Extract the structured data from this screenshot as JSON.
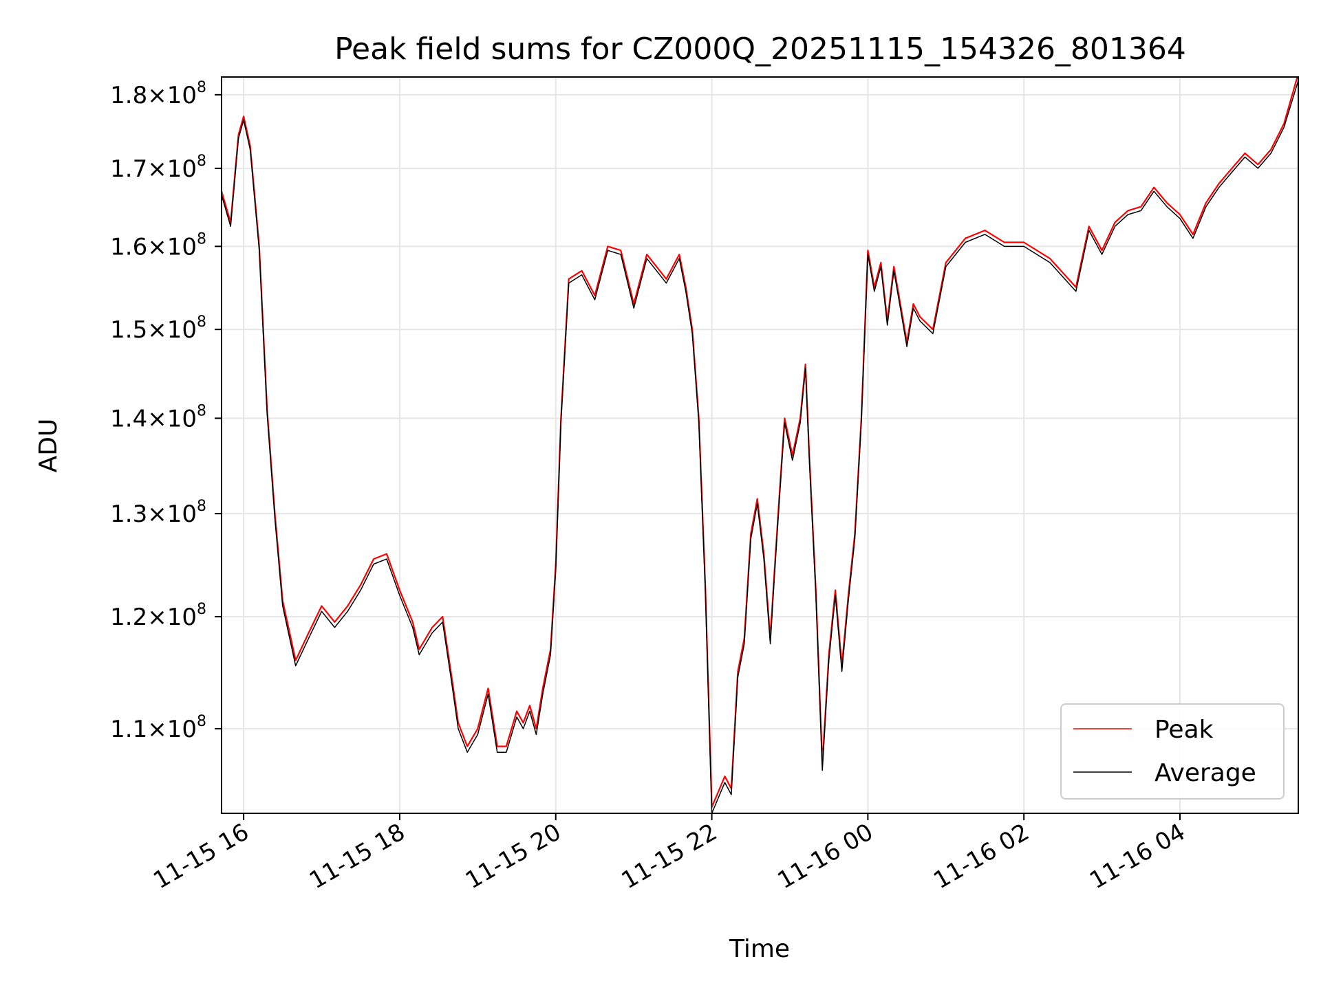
{
  "chart_data": {
    "type": "line",
    "title": "Peak field sums for CZ000Q_20251115_154326_801364",
    "xlabel": "Time",
    "ylabel": "ADU",
    "y_scale": "log",
    "xlim": [
      "2025-11-15 15:43",
      "2025-11-16 05:31"
    ],
    "ylim": [
      103000000,
      182500000
    ],
    "grid": true,
    "legend_position": "lower right",
    "x_ticks": [
      "11-15 16",
      "11-15 18",
      "11-15 20",
      "11-15 22",
      "11-16 00",
      "11-16 02",
      "11-16 04"
    ],
    "y_ticks": [
      {
        "value": 110000000,
        "mantissa": "1.1",
        "exp": "8"
      },
      {
        "value": 120000000,
        "mantissa": "1.2",
        "exp": "8"
      },
      {
        "value": 130000000,
        "mantissa": "1.3",
        "exp": "8"
      },
      {
        "value": 140000000,
        "mantissa": "1.4",
        "exp": "8"
      },
      {
        "value": 150000000,
        "mantissa": "1.5",
        "exp": "8"
      },
      {
        "value": 160000000,
        "mantissa": "1.6",
        "exp": "8"
      },
      {
        "value": 170000000,
        "mantissa": "1.7",
        "exp": "8"
      },
      {
        "value": 180000000,
        "mantissa": "1.8",
        "exp": "8"
      }
    ],
    "x": [
      "2025-11-15 15:43",
      "2025-11-15 15:50",
      "2025-11-15 15:56",
      "2025-11-15 16:00",
      "2025-11-15 16:05",
      "2025-11-15 16:12",
      "2025-11-15 16:18",
      "2025-11-15 16:24",
      "2025-11-15 16:30",
      "2025-11-15 16:40",
      "2025-11-15 16:50",
      "2025-11-15 17:00",
      "2025-11-15 17:10",
      "2025-11-15 17:20",
      "2025-11-15 17:30",
      "2025-11-15 17:40",
      "2025-11-15 17:50",
      "2025-11-15 18:00",
      "2025-11-15 18:10",
      "2025-11-15 18:15",
      "2025-11-15 18:25",
      "2025-11-15 18:33",
      "2025-11-15 18:40",
      "2025-11-15 18:45",
      "2025-11-15 18:52",
      "2025-11-15 19:00",
      "2025-11-15 19:08",
      "2025-11-15 19:15",
      "2025-11-15 19:22",
      "2025-11-15 19:30",
      "2025-11-15 19:35",
      "2025-11-15 19:40",
      "2025-11-15 19:45",
      "2025-11-15 19:50",
      "2025-11-15 19:56",
      "2025-11-15 20:00",
      "2025-11-15 20:04",
      "2025-11-15 20:10",
      "2025-11-15 20:20",
      "2025-11-15 20:30",
      "2025-11-15 20:40",
      "2025-11-15 20:50",
      "2025-11-15 21:00",
      "2025-11-15 21:10",
      "2025-11-15 21:20",
      "2025-11-15 21:25",
      "2025-11-15 21:35",
      "2025-11-15 21:40",
      "2025-11-15 21:45",
      "2025-11-15 21:50",
      "2025-11-15 21:55",
      "2025-11-15 22:00",
      "2025-11-15 22:10",
      "2025-11-15 22:15",
      "2025-11-15 22:20",
      "2025-11-15 22:25",
      "2025-11-15 22:30",
      "2025-11-15 22:35",
      "2025-11-15 22:40",
      "2025-11-15 22:45",
      "2025-11-15 22:48",
      "2025-11-15 22:52",
      "2025-11-15 22:56",
      "2025-11-15 23:02",
      "2025-11-15 23:08",
      "2025-11-15 23:12",
      "2025-11-15 23:15",
      "2025-11-15 23:20",
      "2025-11-15 23:25",
      "2025-11-15 23:30",
      "2025-11-15 23:35",
      "2025-11-15 23:40",
      "2025-11-15 23:45",
      "2025-11-15 23:50",
      "2025-11-15 23:55",
      "2025-11-16 00:00",
      "2025-11-16 00:05",
      "2025-11-16 00:10",
      "2025-11-16 00:15",
      "2025-11-16 00:20",
      "2025-11-16 00:25",
      "2025-11-16 00:30",
      "2025-11-16 00:35",
      "2025-11-16 00:40",
      "2025-11-16 00:50",
      "2025-11-16 01:00",
      "2025-11-16 01:15",
      "2025-11-16 01:30",
      "2025-11-16 01:45",
      "2025-11-16 02:00",
      "2025-11-16 02:20",
      "2025-11-16 02:40",
      "2025-11-16 02:50",
      "2025-11-16 03:00",
      "2025-11-16 03:10",
      "2025-11-16 03:20",
      "2025-11-16 03:30",
      "2025-11-16 03:40",
      "2025-11-16 03:50",
      "2025-11-16 04:00",
      "2025-11-16 04:10",
      "2025-11-16 04:20",
      "2025-11-16 04:30",
      "2025-11-16 04:40",
      "2025-11-16 04:50",
      "2025-11-16 05:00",
      "2025-11-16 05:10",
      "2025-11-16 05:20",
      "2025-11-16 05:31"
    ],
    "series": [
      {
        "name": "Peak",
        "color": "#ff0000",
        "values": [
          167000000,
          163000000,
          174500000,
          177000000,
          173000000,
          160000000,
          141000000,
          130000000,
          121500000,
          116000000,
          118500000,
          121000000,
          119500000,
          121000000,
          123000000,
          125500000,
          126000000,
          122500000,
          119500000,
          117000000,
          119000000,
          120000000,
          114500000,
          110500000,
          108500000,
          110000000,
          113500000,
          108500000,
          108500000,
          111500000,
          110500000,
          112000000,
          110000000,
          113500000,
          117000000,
          125000000,
          140000000,
          156000000,
          157000000,
          154000000,
          160000000,
          159500000,
          153000000,
          159000000,
          157000000,
          156000000,
          159000000,
          155000000,
          150000000,
          140000000,
          123000000,
          103500000,
          106000000,
          105000000,
          115000000,
          118000000,
          128000000,
          131500000,
          126000000,
          118000000,
          124000000,
          132000000,
          140000000,
          136000000,
          140000000,
          146000000,
          136000000,
          122500000,
          107000000,
          116500000,
          122500000,
          115500000,
          122000000,
          128000000,
          140000000,
          159500000,
          155000000,
          158000000,
          151000000,
          157500000,
          153000000,
          148500000,
          153000000,
          151500000,
          150000000,
          158000000,
          161000000,
          162000000,
          160500000,
          160500000,
          158500000,
          155000000,
          162500000,
          159500000,
          163000000,
          164500000,
          165000000,
          167500000,
          165500000,
          164000000,
          161500000,
          165500000,
          168000000,
          170000000,
          172000000,
          170500000,
          172500000,
          176000000,
          183000000
        ]
      },
      {
        "name": "Average",
        "color": "#000000",
        "values": [
          166500000,
          162500000,
          174000000,
          176500000,
          172500000,
          159500000,
          140500000,
          129500000,
          121000000,
          115500000,
          118000000,
          120500000,
          119000000,
          120500000,
          122500000,
          125000000,
          125500000,
          122000000,
          119000000,
          116500000,
          118500000,
          119500000,
          114000000,
          110000000,
          108000000,
          109500000,
          113000000,
          108000000,
          108000000,
          111000000,
          110000000,
          111500000,
          109500000,
          113000000,
          116500000,
          124500000,
          139500000,
          155500000,
          156500000,
          153500000,
          159500000,
          159000000,
          152500000,
          158500000,
          156500000,
          155500000,
          158500000,
          154500000,
          149500000,
          139500000,
          122500000,
          103000000,
          105500000,
          104500000,
          114500000,
          117500000,
          127500000,
          131000000,
          125500000,
          117500000,
          123500000,
          131500000,
          139500000,
          135500000,
          139500000,
          145500000,
          135500000,
          122000000,
          106500000,
          116000000,
          122000000,
          115000000,
          121500000,
          127500000,
          139500000,
          159000000,
          154500000,
          157500000,
          150500000,
          157000000,
          152500000,
          148000000,
          152500000,
          151000000,
          149500000,
          157500000,
          160500000,
          161500000,
          160000000,
          160000000,
          158000000,
          154500000,
          162000000,
          159000000,
          162500000,
          164000000,
          164500000,
          167000000,
          165000000,
          163500000,
          161000000,
          165000000,
          167500000,
          169500000,
          171500000,
          170000000,
          172000000,
          175500000,
          182000000
        ]
      }
    ]
  }
}
